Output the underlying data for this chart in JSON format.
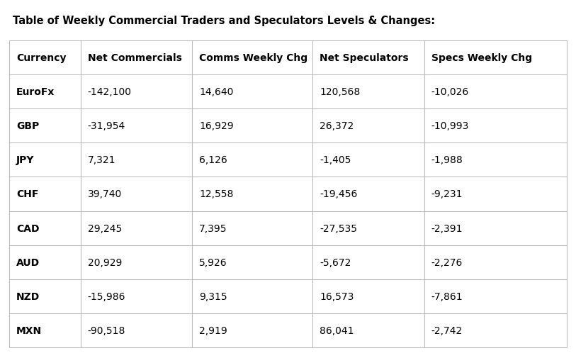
{
  "title": "Table of Weekly Commercial Traders and Speculators Levels & Changes:",
  "columns": [
    "Currency",
    "Net Commercials",
    "Comms Weekly Chg",
    "Net Speculators",
    "Specs Weekly Chg"
  ],
  "rows": [
    [
      "EuroFx",
      "-142,100",
      "14,640",
      "120,568",
      "-10,026"
    ],
    [
      "GBP",
      "-31,954",
      "16,929",
      "26,372",
      "-10,993"
    ],
    [
      "JPY",
      "7,321",
      "6,126",
      "-1,405",
      "-1,988"
    ],
    [
      "CHF",
      "39,740",
      "12,558",
      "-19,456",
      "-9,231"
    ],
    [
      "CAD",
      "29,245",
      "7,395",
      "-27,535",
      "-2,391"
    ],
    [
      "AUD",
      "20,929",
      "5,926",
      "-5,672",
      "-2,276"
    ],
    [
      "NZD",
      "-15,986",
      "9,315",
      "16,573",
      "-7,861"
    ],
    [
      "MXN",
      "-90,518",
      "2,919",
      "86,041",
      "-2,742"
    ]
  ],
  "bg_color": "#ffffff",
  "border_color": "#bbbbbb",
  "text_color": "#000000",
  "title_fontsize": 10.5,
  "header_fontsize": 10,
  "row_fontsize": 10,
  "figwidth": 8.13,
  "figheight": 5.06,
  "dpi": 100
}
